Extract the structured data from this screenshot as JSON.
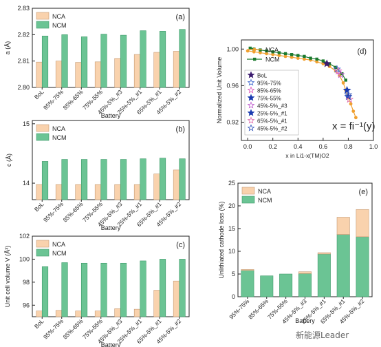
{
  "colors": {
    "nca": "#f9d2ad",
    "nca_edge": "#c49a74",
    "ncm": "#6bc494",
    "ncm_edge": "#3f9a6a",
    "line_nca": "#f0a030",
    "line_ncm": "#1b7a2e"
  },
  "watermark": "新能源Leader",
  "chart_data": [
    {
      "type": "bar",
      "panel": "(a)",
      "ylabel": "a (Å)",
      "xlabel": "Battery",
      "ylim": [
        2.8,
        2.83
      ],
      "yticks": [
        2.8,
        2.81,
        2.82,
        2.83
      ],
      "categories": [
        "BoL",
        "95%-75%",
        "85%-65%",
        "75%-55%",
        "45%-5%_#3",
        "25%-5%_#1",
        "65%-5%_#1",
        "45%-5%_#2"
      ],
      "legend": "top-left",
      "series": [
        {
          "name": "NCA",
          "values": [
            2.8096,
            2.81,
            2.8095,
            2.8097,
            2.811,
            2.8125,
            2.8133,
            2.8137
          ]
        },
        {
          "name": "NCM",
          "values": [
            2.8195,
            2.82,
            2.8192,
            2.8202,
            2.8198,
            2.8215,
            2.8213,
            2.822
          ]
        }
      ]
    },
    {
      "type": "bar",
      "panel": "(b)",
      "ylabel": "c (Å)",
      "xlabel": "Battery",
      "ylim": [
        13.75,
        14.95
      ],
      "yticks": [
        14,
        14.9
      ],
      "ytick_labels": [
        "14",
        "15"
      ],
      "categories": [
        "BoL",
        "95%-75%",
        "85%-65%",
        "75%-55%",
        "45%-5%_#3",
        "25%-5%_#1",
        "65%-5%_#1",
        "45%-5%_#2"
      ],
      "legend": "top-left",
      "series": [
        {
          "name": "NCA",
          "values": [
            13.98,
            13.98,
            13.98,
            13.98,
            13.98,
            13.98,
            14.14,
            14.2
          ]
        },
        {
          "name": "NCM",
          "values": [
            14.33,
            14.36,
            14.36,
            14.36,
            14.36,
            14.37,
            14.38,
            14.37
          ]
        }
      ]
    },
    {
      "type": "bar",
      "panel": "(c)",
      "ylabel": "Unit cell volume V (Å³)",
      "xlabel": "Battery",
      "ylim": [
        95,
        102
      ],
      "yticks": [
        96,
        98,
        100,
        102
      ],
      "categories": [
        "BoL",
        "95%-75%",
        "85%-65%",
        "75%-55%",
        "45%-5%_#3",
        "25%-5%_#1",
        "65%-5%_#1",
        "45%-5%_#2"
      ],
      "legend": "top-left",
      "series": [
        {
          "name": "NCA",
          "values": [
            95.5,
            95.55,
            95.5,
            95.5,
            95.7,
            95.65,
            97.3,
            98.1
          ]
        },
        {
          "name": "NCM",
          "values": [
            99.35,
            99.7,
            99.65,
            99.65,
            99.65,
            99.85,
            100.0,
            100.0
          ]
        }
      ]
    },
    {
      "type": "line",
      "panel": "(d)",
      "ylabel": "Normalized Unit Volume",
      "xlabel": "x in Li1-x(TM)O2",
      "xlim": [
        -0.05,
        1.0
      ],
      "ylim": [
        0.9,
        1.01
      ],
      "xticks": [
        0.0,
        0.2,
        0.4,
        0.6,
        0.8,
        1.0
      ],
      "yticks": [
        0.92,
        0.96,
        1.0
      ],
      "annotation": "x = fi⁻¹(y)",
      "legend": "top-left",
      "series": [
        {
          "name": "NCA",
          "x": [
            0.0,
            0.05,
            0.1,
            0.15,
            0.2,
            0.25,
            0.3,
            0.35,
            0.4,
            0.45,
            0.5,
            0.55,
            0.6,
            0.65,
            0.7,
            0.73,
            0.76,
            0.78,
            0.8,
            0.82,
            0.84,
            0.86
          ],
          "y": [
            0.998,
            0.997,
            0.996,
            0.995,
            0.994,
            0.993,
            0.992,
            0.991,
            0.99,
            0.989,
            0.988,
            0.986,
            0.984,
            0.981,
            0.976,
            0.971,
            0.963,
            0.955,
            0.947,
            0.94,
            0.932,
            0.925
          ]
        },
        {
          "name": "NCM",
          "x": [
            0.02,
            0.05,
            0.1,
            0.15,
            0.2,
            0.25,
            0.3,
            0.35,
            0.4,
            0.45,
            0.5,
            0.55,
            0.6,
            0.65,
            0.7,
            0.75,
            0.78
          ],
          "y": [
            1.001,
            1.0,
            0.999,
            0.998,
            0.997,
            0.996,
            0.995,
            0.994,
            0.993,
            0.992,
            0.99,
            0.989,
            0.987,
            0.984,
            0.98,
            0.973,
            0.966
          ]
        }
      ],
      "markers": [
        {
          "name": "BoL",
          "x": 0.63,
          "y": 0.984,
          "color": "#3a1a6e",
          "style": "filled"
        },
        {
          "name": "95%-75%",
          "x": 0.71,
          "y": 0.978,
          "color": "#4a6fd0",
          "style": "open"
        },
        {
          "name": "85%-65%",
          "x": 0.72,
          "y": 0.976,
          "color": "#e060c0",
          "style": "open"
        },
        {
          "name": "75%-55%",
          "x": 0.8,
          "y": 0.948,
          "color": "#1a3ab0",
          "style": "filled"
        },
        {
          "name": "45%-5%_#3",
          "x": 0.74,
          "y": 0.972,
          "color": "#c060d0",
          "style": "open"
        },
        {
          "name": "25%-5%_#1",
          "x": 0.79,
          "y": 0.955,
          "color": "#1a3ab0",
          "style": "filled"
        },
        {
          "name": "65%-5%_#1",
          "x": 0.81,
          "y": 0.945,
          "color": "#e070b0",
          "style": "open"
        },
        {
          "name": "45%-5%_#2",
          "x": 0.8,
          "y": 0.95,
          "color": "#4060c0",
          "style": "open"
        }
      ]
    },
    {
      "type": "bar",
      "panel": "(e)",
      "stacked": true,
      "ylabel": "Unlithiated cathode loss (%)",
      "xlabel": "Battery",
      "ylim": [
        0,
        25
      ],
      "yticks": [
        0,
        5,
        10,
        15,
        20,
        25
      ],
      "categories": [
        "95%-75%",
        "85%-65%",
        "75%-55%",
        "45%-5%_#3",
        "25%-5%_#1",
        "65%-5%_#1",
        "45%-5%_#2"
      ],
      "legend": "top-left",
      "series": [
        {
          "name": "NCM",
          "values": [
            5.8,
            4.6,
            5.0,
            5.1,
            9.4,
            13.7,
            13.2
          ]
        },
        {
          "name": "NCA",
          "values": [
            0.2,
            0.0,
            0.0,
            0.4,
            0.3,
            3.8,
            6.0
          ]
        }
      ]
    }
  ]
}
